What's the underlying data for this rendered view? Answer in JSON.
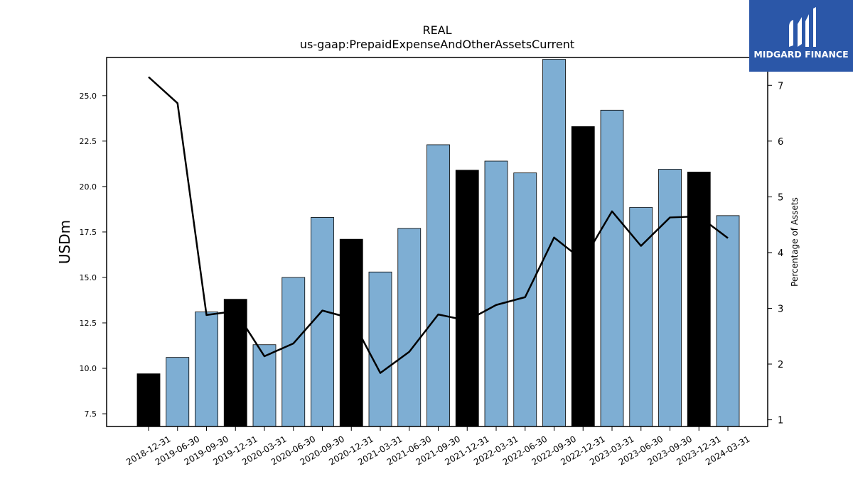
{
  "logo": {
    "text": "MIDGARD FINANCE",
    "icon": "midgard-logo-icon",
    "color": "#2b57a8"
  },
  "chart_data": {
    "type": "bar",
    "title": "REAL",
    "subtitle": "us-gaap:PrepaidExpenseAndOtherAssetsCurrent",
    "ylabel": "USDm",
    "y2label": "Percentage of Assets",
    "categories": [
      "2018-12-31",
      "2019-06-30",
      "2019-09-30",
      "2019-12-31",
      "2020-03-31",
      "2020-06-30",
      "2020-09-30",
      "2020-12-31",
      "2021-03-31",
      "2021-06-30",
      "2021-09-30",
      "2021-12-31",
      "2022-03-31",
      "2022-06-30",
      "2022-09-30",
      "2022-12-31",
      "2023-03-31",
      "2023-06-30",
      "2023-09-30",
      "2023-12-31",
      "2024-03-31"
    ],
    "values": [
      9.7,
      10.6,
      13.1,
      13.8,
      11.3,
      15.0,
      18.3,
      17.1,
      15.3,
      17.7,
      22.3,
      20.9,
      21.4,
      20.75,
      27.0,
      23.3,
      24.2,
      18.85,
      20.95,
      20.8,
      18.4
    ],
    "highlight": [
      true,
      false,
      false,
      true,
      false,
      false,
      false,
      true,
      false,
      false,
      false,
      true,
      false,
      false,
      false,
      true,
      false,
      false,
      false,
      true,
      false
    ],
    "line_values": [
      7.15,
      6.68,
      2.88,
      2.95,
      2.14,
      2.37,
      2.96,
      2.82,
      1.84,
      2.22,
      2.89,
      2.78,
      3.06,
      3.2,
      4.27,
      3.86,
      4.74,
      4.12,
      4.63,
      4.65,
      4.26
    ],
    "ylim": [
      6.8,
      27.1
    ],
    "y2lim": [
      0.88,
      7.5
    ],
    "yticks": [
      7.5,
      10.0,
      12.5,
      15.0,
      17.5,
      20.0,
      22.5,
      25.0
    ],
    "y2ticks": [
      1,
      2,
      3,
      4,
      5,
      6,
      7
    ],
    "colors": {
      "bar": "#7eaed3",
      "bar_highlight": "#000000",
      "line": "#000000"
    },
    "grid": false,
    "legend": "none"
  }
}
